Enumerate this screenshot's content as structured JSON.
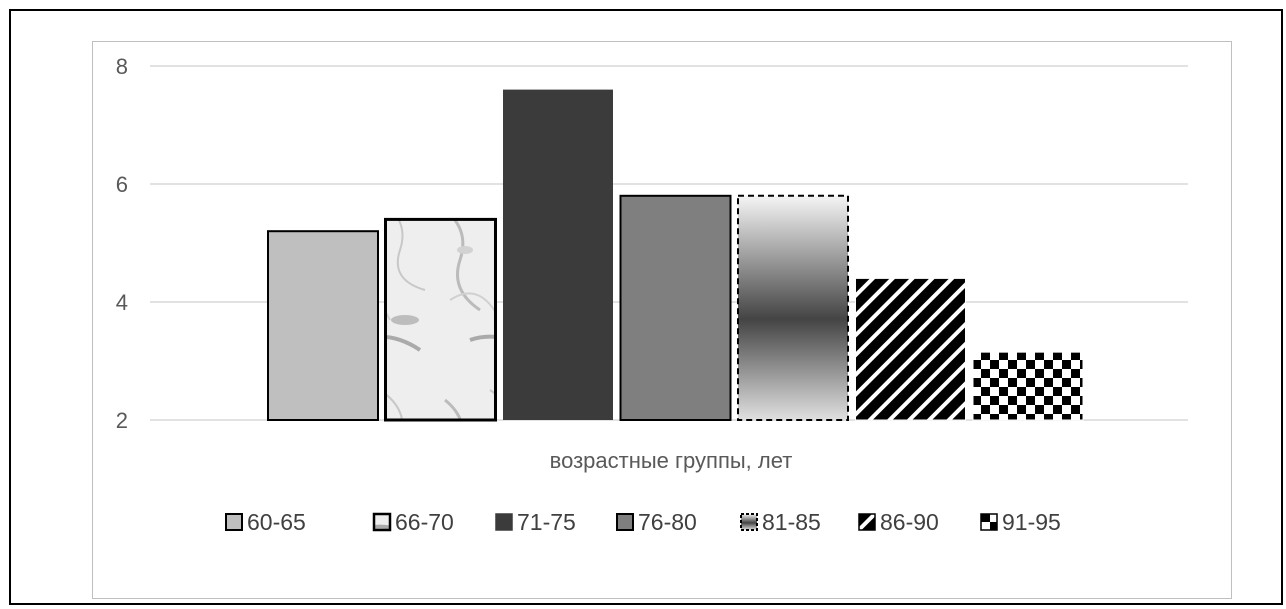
{
  "chart_data": {
    "type": "bar",
    "title": "",
    "xlabel": "возрастные группы, лет",
    "ylabel": "",
    "ylim": [
      2,
      8
    ],
    "yticks": [
      2,
      4,
      6,
      8
    ],
    "grid": true,
    "legend_position": "bottom",
    "series": [
      {
        "name": "60-65",
        "value": 5.2,
        "fill": "#bfbfbf",
        "pattern": "solid-light-gray"
      },
      {
        "name": "66-70",
        "value": 5.4,
        "fill": "#e6e6e6",
        "pattern": "marble-texture"
      },
      {
        "name": "71-75",
        "value": 7.6,
        "fill": "#3b3b3b",
        "pattern": "solid-dark"
      },
      {
        "name": "76-80",
        "value": 5.8,
        "fill": "#7f7f7f",
        "pattern": "solid-mid-gray"
      },
      {
        "name": "81-85",
        "value": 5.8,
        "fill": "#808080",
        "pattern": "vertical-gradient-dashed"
      },
      {
        "name": "86-90",
        "value": 4.4,
        "fill": "#000000",
        "pattern": "diagonal-stripes"
      },
      {
        "name": "91-95",
        "value": 3.15,
        "fill": "#000000",
        "pattern": "checkerboard"
      }
    ]
  }
}
